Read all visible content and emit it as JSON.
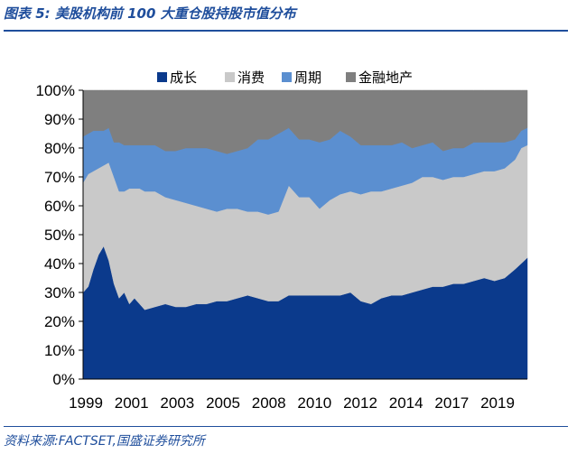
{
  "header": {
    "title": "图表 5:  美股机构前 100 大重仓股持股市值分布"
  },
  "footer": {
    "source": "资料来源:FACTSET,国盛证券研究所"
  },
  "chart_data": {
    "type": "area",
    "stacked": true,
    "normalized": true,
    "title": "图表 5:  美股机构前 100 大重仓股持股市值分布",
    "xlabel": "",
    "ylabel": "",
    "ylim": [
      0,
      1
    ],
    "xlim": [
      1999,
      2020.6
    ],
    "legend_position": "top",
    "grid": false,
    "x_tick_labels": [
      "1999",
      "2001",
      "2003",
      "2005",
      "2008",
      "2010",
      "2012",
      "2014",
      "2017",
      "2019"
    ],
    "y_tick_labels": [
      "0%",
      "10%",
      "20%",
      "30%",
      "40%",
      "50%",
      "60%",
      "70%",
      "80%",
      "90%",
      "100%"
    ],
    "x": [
      1999.0,
      1999.25,
      1999.5,
      1999.75,
      2000.0,
      2000.25,
      2000.5,
      2000.75,
      2001.0,
      2001.25,
      2001.5,
      2001.75,
      2002.0,
      2002.5,
      2003.0,
      2003.5,
      2004.0,
      2004.5,
      2005.0,
      2005.5,
      2006.0,
      2006.5,
      2007.0,
      2007.5,
      2008.0,
      2008.5,
      2009.0,
      2009.5,
      2010.0,
      2010.5,
      2011.0,
      2011.5,
      2012.0,
      2012.5,
      2013.0,
      2013.5,
      2014.0,
      2014.5,
      2015.0,
      2015.5,
      2016.0,
      2016.5,
      2017.0,
      2017.5,
      2018.0,
      2018.5,
      2019.0,
      2019.5,
      2020.0,
      2020.3,
      2020.6
    ],
    "series": [
      {
        "name": "成长",
        "color": "#0b3a8c",
        "values": [
          0.3,
          0.32,
          0.38,
          0.43,
          0.46,
          0.41,
          0.33,
          0.28,
          0.3,
          0.26,
          0.28,
          0.26,
          0.24,
          0.25,
          0.26,
          0.25,
          0.25,
          0.26,
          0.26,
          0.27,
          0.27,
          0.28,
          0.29,
          0.28,
          0.27,
          0.27,
          0.29,
          0.29,
          0.29,
          0.29,
          0.29,
          0.29,
          0.3,
          0.27,
          0.26,
          0.28,
          0.29,
          0.29,
          0.3,
          0.31,
          0.32,
          0.32,
          0.33,
          0.33,
          0.34,
          0.35,
          0.34,
          0.35,
          0.38,
          0.4,
          0.42
        ]
      },
      {
        "name": "消费",
        "color": "#c9c9c9",
        "values": [
          0.38,
          0.39,
          0.34,
          0.3,
          0.28,
          0.34,
          0.37,
          0.37,
          0.35,
          0.4,
          0.38,
          0.4,
          0.41,
          0.4,
          0.37,
          0.37,
          0.36,
          0.34,
          0.33,
          0.31,
          0.32,
          0.31,
          0.29,
          0.3,
          0.3,
          0.31,
          0.38,
          0.34,
          0.34,
          0.3,
          0.33,
          0.35,
          0.35,
          0.37,
          0.39,
          0.37,
          0.37,
          0.38,
          0.38,
          0.39,
          0.38,
          0.37,
          0.37,
          0.37,
          0.37,
          0.37,
          0.38,
          0.38,
          0.38,
          0.4,
          0.39
        ]
      },
      {
        "name": "周期",
        "color": "#5b8fd0",
        "values": [
          0.16,
          0.14,
          0.14,
          0.13,
          0.12,
          0.12,
          0.12,
          0.17,
          0.16,
          0.15,
          0.15,
          0.15,
          0.16,
          0.16,
          0.16,
          0.17,
          0.19,
          0.2,
          0.21,
          0.21,
          0.19,
          0.2,
          0.22,
          0.25,
          0.26,
          0.27,
          0.2,
          0.2,
          0.2,
          0.23,
          0.21,
          0.22,
          0.19,
          0.17,
          0.16,
          0.16,
          0.15,
          0.15,
          0.12,
          0.11,
          0.12,
          0.1,
          0.1,
          0.1,
          0.11,
          0.1,
          0.1,
          0.09,
          0.07,
          0.06,
          0.06
        ]
      },
      {
        "name": "金融地产",
        "color": "#7f7f7f",
        "values": [
          0.16,
          0.15,
          0.14,
          0.14,
          0.14,
          0.13,
          0.18,
          0.18,
          0.19,
          0.19,
          0.19,
          0.19,
          0.19,
          0.19,
          0.21,
          0.21,
          0.2,
          0.2,
          0.2,
          0.21,
          0.22,
          0.21,
          0.2,
          0.17,
          0.17,
          0.15,
          0.13,
          0.17,
          0.17,
          0.18,
          0.17,
          0.14,
          0.16,
          0.19,
          0.19,
          0.19,
          0.19,
          0.18,
          0.2,
          0.19,
          0.18,
          0.21,
          0.2,
          0.2,
          0.18,
          0.18,
          0.18,
          0.18,
          0.17,
          0.14,
          0.13
        ]
      }
    ]
  }
}
